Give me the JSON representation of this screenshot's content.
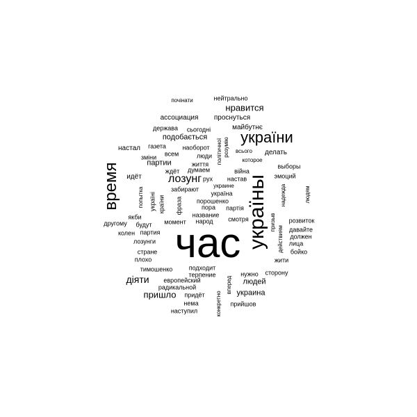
{
  "words": [
    "час",
    "україны",
    "время",
    "україни",
    "лозунг",
    "нравится",
    "діяти",
    "пришло",
    "людей",
    "украина",
    "партии",
    "подобається",
    "настал",
    "делать",
    "идёт",
    "ассоциация",
    "проснуться",
    "майбутнє",
    "держава",
    "сьогодні",
    "газета",
    "наоборот",
    "зміни",
    "всем",
    "люди",
    "життя",
    "ждёт",
    "думаем",
    "рух",
    "настав",
    "забирают",
    "україна",
    "порошенко",
    "пора",
    "название",
    "партія",
    "народ",
    "момент",
    "смотря",
    "фраза",
    "країни",
    "україні",
    "попытка",
    "якби",
    "другому",
    "будут",
    "колен",
    "партия",
    "лозунги",
    "стране",
    "плохо",
    "тимошенко",
    "подходит",
    "терпение",
    "европейский",
    "радикальной",
    "придёт",
    "нема",
    "наступил",
    "конкретно",
    "вперед",
    "нужно",
    "сторону",
    "прийшов",
    "почінати",
    "нейтрально",
    "всього",
    "которое",
    "розумію",
    "політичної",
    "війна",
    "выборы",
    "эмоций",
    "надежда",
    "людям",
    "розвиток",
    "давайте",
    "должен",
    "лица",
    "бойко",
    "жити",
    "призыв",
    "действиям",
    "украине"
  ]
}
